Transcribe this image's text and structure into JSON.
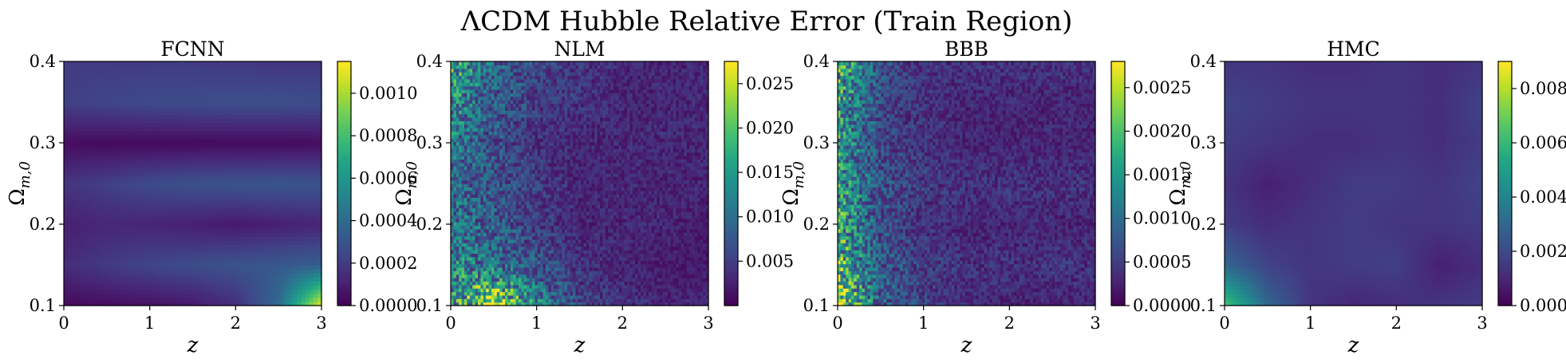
{
  "figure": {
    "suptitle": "ΛCDM Hubble Relative Error (Train Region)"
  },
  "chart_data": [
    {
      "type": "heatmap",
      "title": "FCNN",
      "xlabel": "z",
      "ylabel": "Ω_{m,0}",
      "ylabel_main": "Ω",
      "ylabel_sub": "m,0",
      "xlim": [
        0,
        3
      ],
      "ylim": [
        0.1,
        0.4
      ],
      "xticks": [
        "0",
        "1",
        "2",
        "3"
      ],
      "yticks": [
        "0.1",
        "0.2",
        "0.3",
        "0.4"
      ],
      "colormap": "viridis",
      "colorbar": {
        "range": [
          0.0,
          0.00115
        ],
        "ticks": [
          0.0,
          0.0002,
          0.0004,
          0.0006,
          0.0008,
          0.001
        ],
        "tick_labels": [
          "0.0000",
          "0.0002",
          "0.0004",
          "0.0006",
          "0.0008",
          "0.0010"
        ]
      },
      "pattern": "smooth horizontal bands; dark minima near Ω=0.38, 0.29, 0.18, 0.11; maximum at z≈3, Ω≈0.1",
      "values": {
        "z": [
          0,
          0.5,
          1,
          1.5,
          2,
          2.5,
          3
        ],
        "omega": [
          0.1,
          0.15,
          0.2,
          0.25,
          0.3,
          0.35,
          0.4
        ],
        "grid": [
          [
            3e-05,
            4e-05,
            5e-05,
            8e-05,
            0.00015,
            0.0004,
            0.00112
          ],
          [
            0.00015,
            0.0002,
            0.00024,
            0.00027,
            0.0003,
            0.00032,
            0.00035
          ],
          [
            0.0001,
            0.00013,
            0.00012,
            0.0001,
            8e-05,
            0.0001,
            0.00012
          ],
          [
            0.00018,
            0.00022,
            0.00026,
            0.00029,
            0.0003,
            0.00031,
            0.0003
          ],
          [
            4e-05,
            3e-05,
            3e-05,
            3e-05,
            3e-05,
            3e-05,
            4e-05
          ],
          [
            0.00022,
            0.00024,
            0.00026,
            0.00027,
            0.00028,
            0.00028,
            0.00027
          ],
          [
            0.0002,
            0.0002,
            0.0002,
            0.0002,
            0.00019,
            0.00018,
            0.00018
          ]
        ]
      }
    },
    {
      "type": "heatmap",
      "title": "NLM",
      "xlabel": "z",
      "ylabel": "Ω_{m,0}",
      "ylabel_main": "Ω",
      "ylabel_sub": "m,0",
      "xlim": [
        0,
        3
      ],
      "ylim": [
        0.1,
        0.4
      ],
      "xticks": [
        "0",
        "1",
        "2",
        "3"
      ],
      "yticks": [
        "0.1",
        "0.2",
        "0.3",
        "0.4"
      ],
      "colormap": "viridis",
      "colorbar": {
        "range": [
          0.0,
          0.0275
        ],
        "ticks": [
          0.005,
          0.01,
          0.015,
          0.02,
          0.025
        ],
        "tick_labels": [
          "0.005",
          "0.010",
          "0.015",
          "0.020",
          "0.025"
        ]
      },
      "pattern": "noisy; high near z<1, strongest near z≈0.5, Ω≈0.12; decays toward higher z",
      "values": {
        "z": [
          0,
          0.5,
          1,
          1.5,
          2,
          2.5,
          3
        ],
        "omega": [
          0.1,
          0.15,
          0.2,
          0.25,
          0.3,
          0.35,
          0.4
        ],
        "grid": [
          [
            0.014,
            0.024,
            0.012,
            0.006,
            0.004,
            0.003,
            0.003
          ],
          [
            0.012,
            0.01,
            0.007,
            0.004,
            0.003,
            0.002,
            0.002
          ],
          [
            0.011,
            0.008,
            0.005,
            0.003,
            0.003,
            0.003,
            0.002
          ],
          [
            0.01,
            0.007,
            0.005,
            0.003,
            0.003,
            0.003,
            0.003
          ],
          [
            0.011,
            0.007,
            0.004,
            0.003,
            0.003,
            0.003,
            0.003
          ],
          [
            0.013,
            0.008,
            0.005,
            0.004,
            0.003,
            0.003,
            0.003
          ],
          [
            0.016,
            0.009,
            0.006,
            0.004,
            0.003,
            0.003,
            0.003
          ]
        ]
      }
    },
    {
      "type": "heatmap",
      "title": "BBB",
      "xlabel": "z",
      "ylabel": "Ω_{m,0}",
      "ylabel_main": "Ω",
      "ylabel_sub": "m,0",
      "xlim": [
        0,
        3
      ],
      "ylim": [
        0.1,
        0.4
      ],
      "xticks": [
        "0",
        "1",
        "2",
        "3"
      ],
      "yticks": [
        "0.1",
        "0.2",
        "0.3",
        "0.4"
      ],
      "colormap": "viridis",
      "colorbar": {
        "range": [
          0.0,
          0.0028
        ],
        "ticks": [
          0.0,
          0.0005,
          0.001,
          0.0015,
          0.002,
          0.0025
        ],
        "tick_labels": [
          "0.0000",
          "0.0005",
          "0.0010",
          "0.0015",
          "0.0020",
          "0.0025"
        ]
      },
      "pattern": "noisy; bright strip near z≈0; faint bands elsewhere; dark band near Ω≈0.12",
      "values": {
        "z": [
          0,
          0.5,
          1,
          1.5,
          2,
          2.5,
          3
        ],
        "omega": [
          0.1,
          0.15,
          0.2,
          0.25,
          0.3,
          0.35,
          0.4
        ],
        "grid": [
          [
            0.0022,
            0.0009,
            0.0005,
            0.0003,
            0.0003,
            0.0003,
            0.0003
          ],
          [
            0.0018,
            0.0008,
            0.0005,
            0.0004,
            0.0004,
            0.0004,
            0.0004
          ],
          [
            0.0016,
            0.0007,
            0.0004,
            0.0003,
            0.0003,
            0.0003,
            0.0003
          ],
          [
            0.0015,
            0.0007,
            0.0005,
            0.0004,
            0.0004,
            0.0004,
            0.0004
          ],
          [
            0.0014,
            0.0006,
            0.0004,
            0.0003,
            0.0003,
            0.0003,
            0.0003
          ],
          [
            0.0015,
            0.0006,
            0.0004,
            0.0003,
            0.0003,
            0.0003,
            0.0003
          ],
          [
            0.0017,
            0.0007,
            0.0004,
            0.0004,
            0.0004,
            0.0004,
            0.0004
          ]
        ]
      }
    },
    {
      "type": "heatmap",
      "title": "HMC",
      "xlabel": "z",
      "ylabel": "Ω_{m,0}",
      "ylabel_main": "Ω",
      "ylabel_sub": "m,0",
      "xlim": [
        0,
        3
      ],
      "ylim": [
        0.1,
        0.4
      ],
      "xticks": [
        "0",
        "1",
        "2",
        "3"
      ],
      "yticks": [
        "0.1",
        "0.2",
        "0.3",
        "0.4"
      ],
      "colormap": "viridis",
      "colorbar": {
        "range": [
          0.0,
          0.009
        ],
        "ticks": [
          0.0,
          0.002,
          0.004,
          0.006,
          0.008
        ],
        "tick_labels": [
          "0.000",
          "0.002",
          "0.004",
          "0.006",
          "0.008"
        ]
      },
      "pattern": "mostly low; bright corner near z≈0.3, Ω≈0.1; curved dark rings, oval near z≈2.7, Ω≈0.15",
      "values": {
        "z": [
          0,
          0.5,
          1,
          1.5,
          2,
          2.5,
          3
        ],
        "omega": [
          0.1,
          0.15,
          0.2,
          0.25,
          0.3,
          0.35,
          0.4
        ],
        "grid": [
          [
            0.0065,
            0.003,
            0.0014,
            0.001,
            0.0012,
            0.0014,
            0.0016
          ],
          [
            0.003,
            0.0018,
            0.0014,
            0.0016,
            0.0017,
            0.0008,
            0.0012
          ],
          [
            0.0016,
            0.0012,
            0.0014,
            0.0016,
            0.0014,
            0.0014,
            0.0016
          ],
          [
            0.0014,
            0.0008,
            0.0012,
            0.0016,
            0.0016,
            0.0014,
            0.0018
          ],
          [
            0.0016,
            0.0014,
            0.0012,
            0.0012,
            0.0014,
            0.0012,
            0.0016
          ],
          [
            0.0018,
            0.0016,
            0.0014,
            0.0014,
            0.0014,
            0.0012,
            0.0018
          ],
          [
            0.0014,
            0.0014,
            0.0012,
            0.0012,
            0.0014,
            0.0012,
            0.0014
          ]
        ]
      }
    }
  ]
}
